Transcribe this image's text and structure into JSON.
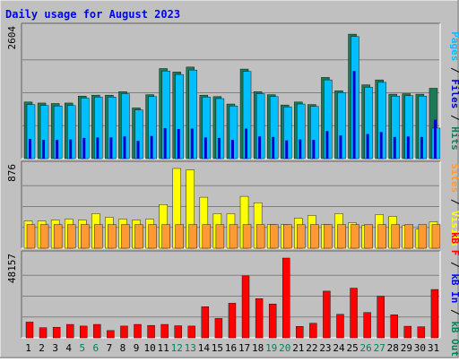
{
  "chart_data": {
    "type": "bar",
    "title": "Daily usage for August 2023",
    "categories": [
      "1",
      "2",
      "3",
      "4",
      "5",
      "6",
      "7",
      "8",
      "9",
      "10",
      "11",
      "12",
      "13",
      "14",
      "15",
      "16",
      "17",
      "18",
      "19",
      "20",
      "21",
      "22",
      "23",
      "24",
      "25",
      "26",
      "27",
      "28",
      "29",
      "30",
      "31"
    ],
    "weekend_days": [
      "5",
      "6",
      "12",
      "13",
      "19",
      "20",
      "26",
      "27"
    ],
    "panels": [
      {
        "id": "hits",
        "ymax_label": "2604",
        "ymax": 2604,
        "grid": true,
        "legend": [
          "Pages",
          "Files",
          "Hits"
        ],
        "series": [
          {
            "name": "Hits",
            "color": "#1a7a55",
            "values": [
              1150,
              1130,
              1120,
              1130,
              1270,
              1290,
              1290,
              1360,
              1030,
              1300,
              1830,
              1760,
              1860,
              1290,
              1260,
              1110,
              1820,
              1360,
              1300,
              1090,
              1150,
              1100,
              1650,
              1380,
              2530,
              1500,
              1600,
              1310,
              1320,
              1310,
              1430
            ]
          },
          {
            "name": "Files",
            "color": "#00bfff",
            "values": [
              1100,
              1080,
              1070,
              1080,
              1230,
              1250,
              1250,
              1320,
              990,
              1260,
              1780,
              1710,
              1800,
              1250,
              1220,
              1070,
              1770,
              1320,
              1260,
              1050,
              1110,
              1060,
              1600,
              1340,
              2480,
              1450,
              1550,
              1270,
              1280,
              1270,
              620
            ]
          },
          {
            "name": "Pages",
            "color": "#0000cc",
            "values": [
              400,
              380,
              380,
              390,
              420,
              430,
              430,
              450,
              360,
              460,
              620,
              600,
              610,
              430,
              420,
              380,
              610,
              450,
              440,
              370,
              390,
              380,
              560,
              470,
              1780,
              500,
              540,
              440,
              450,
              440,
              790
            ]
          }
        ]
      },
      {
        "id": "visits",
        "ymax_label": "876",
        "ymax": 876,
        "grid": true,
        "legend": [
          "Sites",
          "Visits"
        ],
        "series": [
          {
            "name": "Visits",
            "color": "#ffff00",
            "values": [
              300,
              300,
              310,
              320,
              310,
              380,
              340,
              320,
              310,
              320,
              480,
              876,
              860,
              560,
              380,
              380,
              570,
              500,
              260,
              260,
              330,
              360,
              260,
              380,
              280,
              250,
              370,
              350,
              250,
              210,
              290
            ]
          },
          {
            "name": "Sites",
            "color": "#ff9933",
            "values": [
              260,
              260,
              260,
              260,
              260,
              260,
              260,
              260,
              260,
              260,
              260,
              260,
              260,
              260,
              260,
              260,
              260,
              260,
              260,
              260,
              260,
              260,
              260,
              260,
              260,
              260,
              260,
              260,
              260,
              260,
              260
            ]
          }
        ]
      },
      {
        "id": "kbytes",
        "ymax_label": "48157",
        "ymax": 48157,
        "grid": true,
        "legend": [
          "kB F",
          "kB In",
          "kB Out"
        ],
        "series": [
          {
            "name": "kB F",
            "color": "#ff0000",
            "values": [
              9500,
              6100,
              6400,
              8100,
              7100,
              8100,
              4400,
              7100,
              8100,
              7500,
              8100,
              7300,
              7100,
              18800,
              11700,
              20900,
              37400,
              23700,
              20400,
              48157,
              6900,
              8800,
              28200,
              14200,
              30000,
              15300,
              25100,
              13900,
              7000,
              6700,
              29200
            ]
          }
        ]
      }
    ],
    "hits_visible": [
      1150,
      1130,
      1120,
      1130,
      1270,
      1290,
      1290,
      1360,
      1030,
      1300,
      1830,
      1760,
      1860,
      1290,
      1260,
      1110,
      1820,
      1360,
      1300,
      1090,
      1150,
      1100,
      1650,
      1380,
      2530,
      1500,
      1600,
      1310,
      1320,
      1310,
      1430
    ],
    "kbin_visible": true,
    "legend_position": "right-vertical"
  },
  "colors": {
    "frame_bg": "#c0c0c0",
    "panel_bg": "#c0c0c0",
    "title": "#0000ff",
    "weekday_label": "#000000",
    "weekend_label": "#00805a",
    "grid": "#808080",
    "kb_in": "#0000ff",
    "kb_out": "#00805a"
  }
}
